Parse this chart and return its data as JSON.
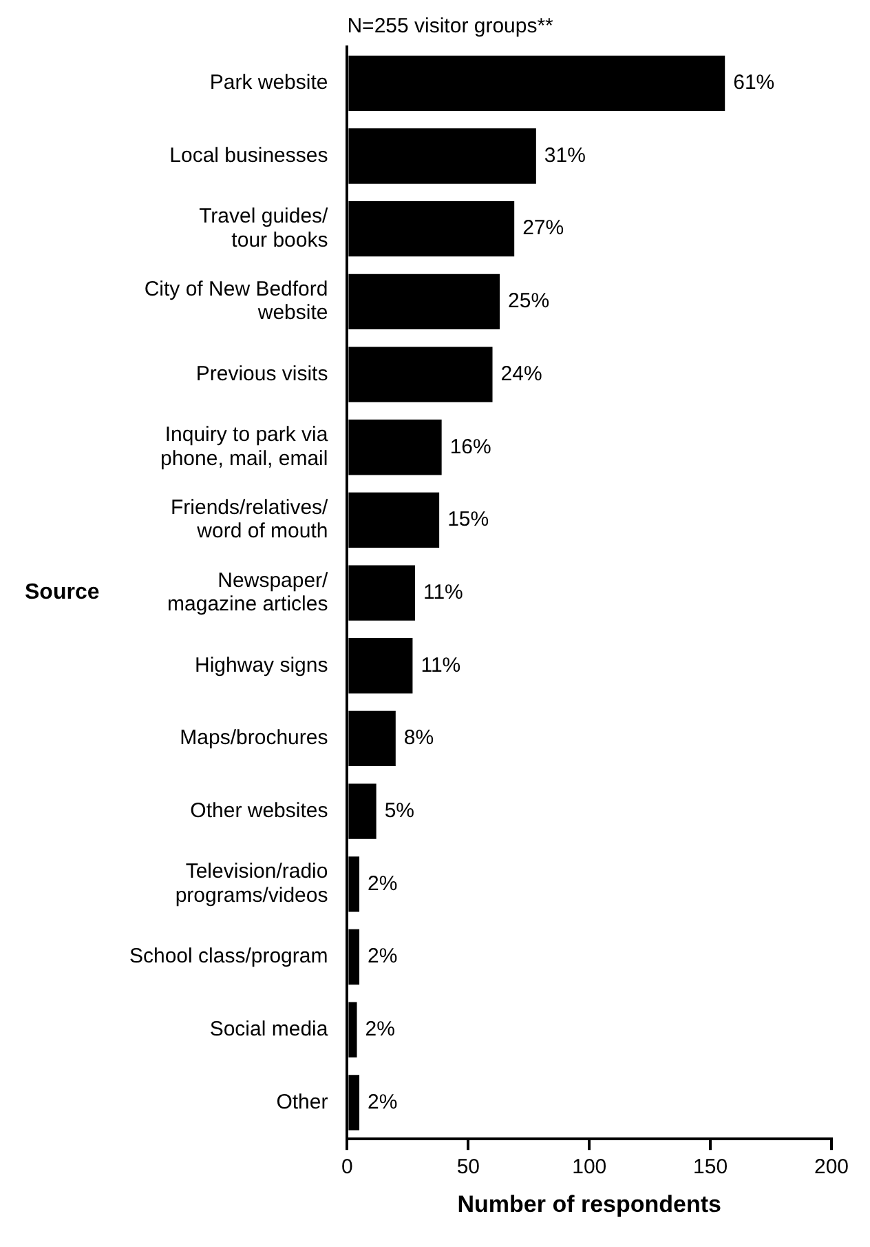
{
  "chart_data": {
    "type": "bar",
    "orientation": "horizontal",
    "title": "N=255 visitor groups**",
    "xlabel": "Number of respondents",
    "ylabel": "Source",
    "categories": [
      "Park website",
      "Local businesses",
      "Travel guides/\ntour books",
      "City of New Bedford\nwebsite",
      "Previous visits",
      "Inquiry to park via\nphone, mail, email",
      "Friends/relatives/\nword of mouth",
      "Newspaper/\nmagazine articles",
      "Highway signs",
      "Maps/brochures",
      "Other websites",
      "Television/radio\nprograms/videos",
      "School class/program",
      "Social media",
      "Other"
    ],
    "values": [
      156,
      78,
      69,
      63,
      60,
      39,
      38,
      28,
      27,
      20,
      12,
      5,
      5,
      4,
      5
    ],
    "annotations": [
      {
        "text": "61%",
        "x": 156,
        "y": "Park website"
      },
      {
        "text": "31%",
        "x": 78,
        "y": "Local businesses"
      },
      {
        "text": "27%",
        "x": 69,
        "y": "Travel guides/\ntour books"
      },
      {
        "text": "25%",
        "x": 63,
        "y": "City of New Bedford\nwebsite"
      },
      {
        "text": "24%",
        "x": 60,
        "y": "Previous visits"
      },
      {
        "text": "16%",
        "x": 39,
        "y": "Inquiry to park via\nphone, mail, email"
      },
      {
        "text": "15%",
        "x": 38,
        "y": "Friends/relatives/\nword of mouth"
      },
      {
        "text": "11%",
        "x": 28,
        "y": "Newspaper/\nmagazine articles"
      },
      {
        "text": "11%",
        "x": 27,
        "y": "Highway signs"
      },
      {
        "text": "8%",
        "x": 20,
        "y": "Maps/brochures"
      },
      {
        "text": "5%",
        "x": 12,
        "y": "Other websites"
      },
      {
        "text": "2%",
        "x": 5,
        "y": "Television/radio\nprograms/videos"
      },
      {
        "text": "2%",
        "x": 5,
        "y": "School class/program"
      },
      {
        "text": "2%",
        "x": 4,
        "y": "Social media"
      },
      {
        "text": "2%",
        "x": 5,
        "y": "Other"
      }
    ],
    "color": "#000000",
    "xlim": [
      0,
      200
    ],
    "xticks": [
      0,
      50,
      100,
      150,
      200
    ],
    "grid": false,
    "legend": false
  }
}
